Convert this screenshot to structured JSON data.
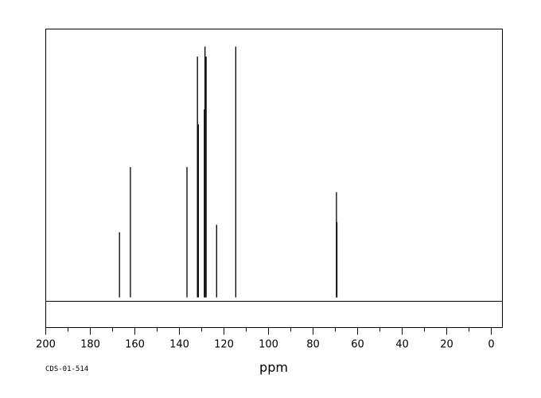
{
  "chart_data": {
    "type": "line",
    "xlabel": "ppm",
    "ylabel": "",
    "title": "",
    "code": "CDS-01-514",
    "xlim": [
      200,
      -5
    ],
    "ylim": [
      -0.12,
      1.07
    ],
    "x_ticks_labeled": [
      200,
      180,
      160,
      140,
      120,
      100,
      80,
      60,
      40,
      20,
      0
    ],
    "x_tick_labels": [
      "200",
      "180",
      "160",
      "140",
      "120",
      "100",
      "80",
      "60",
      "40",
      "20",
      "0"
    ],
    "x_ticks_minor": [
      190,
      170,
      150,
      130,
      110,
      90,
      70,
      50,
      30,
      10
    ],
    "grid": false,
    "legend": "none",
    "peaks": [
      {
        "ppm": 166.9,
        "intensity": 0.26
      },
      {
        "ppm": 162.0,
        "intensity": 0.52
      },
      {
        "ppm": 136.6,
        "intensity": 0.52
      },
      {
        "ppm": 131.9,
        "intensity": 0.96
      },
      {
        "ppm": 131.5,
        "intensity": 0.69
      },
      {
        "ppm": 128.8,
        "intensity": 0.75
      },
      {
        "ppm": 128.5,
        "intensity": 1.0
      },
      {
        "ppm": 128.0,
        "intensity": 0.96
      },
      {
        "ppm": 123.3,
        "intensity": 0.29
      },
      {
        "ppm": 114.7,
        "intensity": 1.0
      },
      {
        "ppm": 69.5,
        "intensity": 0.42
      },
      {
        "ppm": 69.3,
        "intensity": 0.3
      }
    ]
  }
}
